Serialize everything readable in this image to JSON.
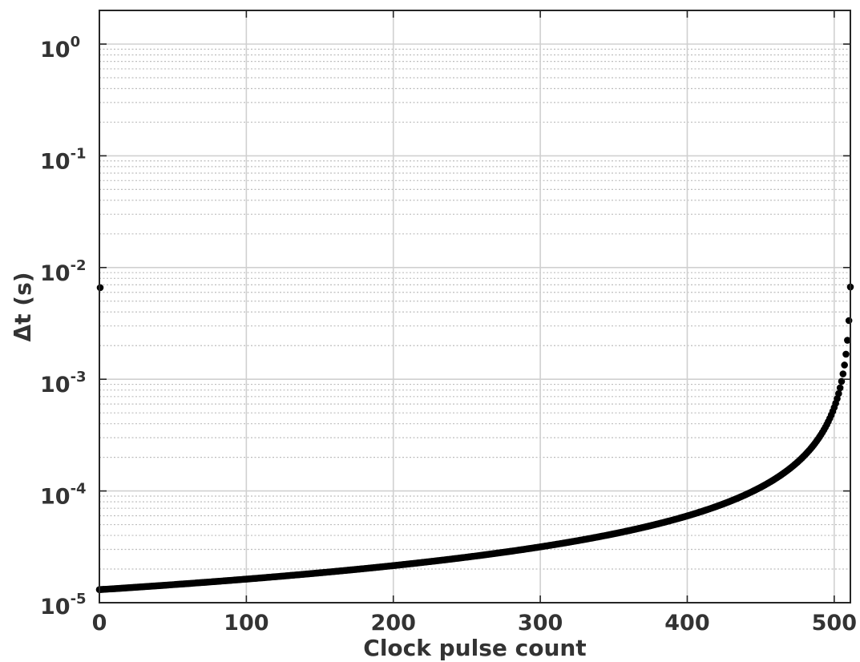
{
  "chart_data": {
    "type": "scatter",
    "title": "",
    "xlabel": "Clock pulse count",
    "ylabel": "Δt (s)",
    "xlim": [
      0,
      511
    ],
    "ylim": [
      1e-05,
      2
    ],
    "yscale": "log",
    "grid": true,
    "legend": "none",
    "x_ticks": [
      "0",
      "100",
      "200",
      "300",
      "400",
      "500"
    ],
    "y_ticks": [
      {
        "base": "10",
        "exp": "0"
      },
      {
        "base": "10",
        "exp": "-1"
      },
      {
        "base": "10",
        "exp": "-2"
      },
      {
        "base": "10",
        "exp": "-3"
      },
      {
        "base": "10",
        "exp": "-4"
      },
      {
        "base": "10",
        "exp": "-5"
      }
    ],
    "outlier_point": {
      "x": 0,
      "y": 0.0066
    },
    "series_model": {
      "description": "y = 0.0067 / (512 - x)",
      "k": 0.0067,
      "n": 512
    },
    "sample_points": [
      {
        "x": 0,
        "y": 1.31e-05
      },
      {
        "x": 100,
        "y": 1.63e-05
      },
      {
        "x": 200,
        "y": 2.15e-05
      },
      {
        "x": 300,
        "y": 3.16e-05
      },
      {
        "x": 400,
        "y": 5.98e-05
      },
      {
        "x": 500,
        "y": 0.00056
      },
      {
        "x": 510,
        "y": 0.0034
      },
      {
        "x": 511,
        "y": 0.0067
      }
    ],
    "marker_color": "#000000"
  }
}
